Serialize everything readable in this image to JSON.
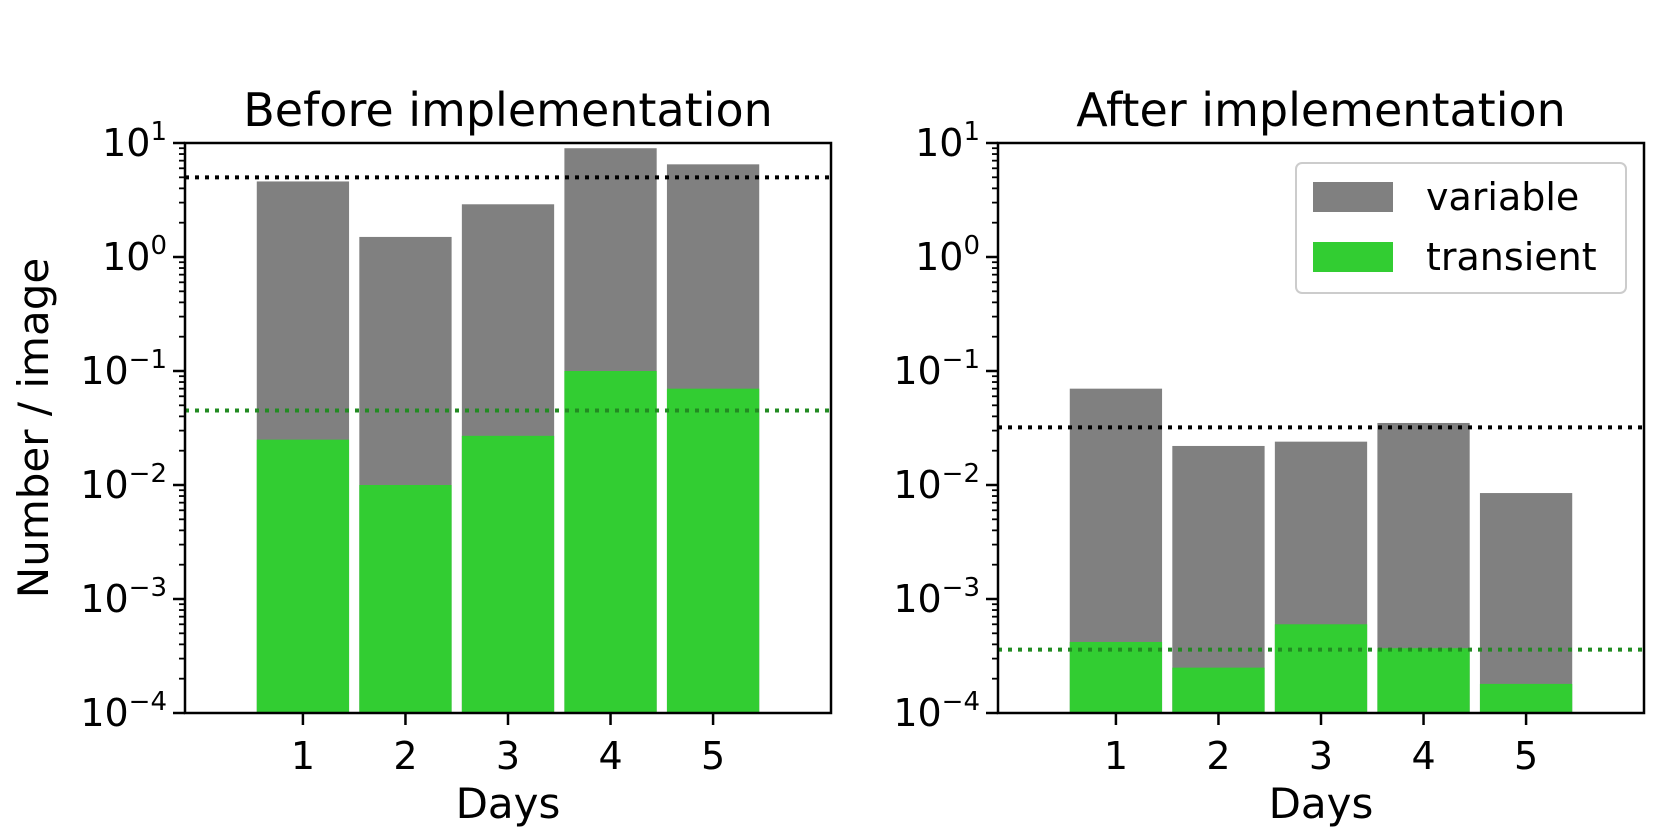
{
  "y_axis_label": "Number / image",
  "legend": [
    {
      "label": "variable",
      "color": "#808080"
    },
    {
      "label": "transient",
      "color": "#32cd32"
    }
  ],
  "chart_data": [
    {
      "type": "bar",
      "title": "Before implementation",
      "xlabel": "Days",
      "ylabel": "Number / image",
      "yscale": "log",
      "ylim": [
        0.0001,
        10
      ],
      "y_tick_labels": [
        "10^-4",
        "10^-3",
        "10^-2",
        "10^-1",
        "10^0",
        "10^1"
      ],
      "categories": [
        "1",
        "2",
        "3",
        "4",
        "5"
      ],
      "stacked_overlay": true,
      "series": [
        {
          "name": "variable",
          "color": "#808080",
          "values": [
            4.6,
            1.5,
            2.9,
            9.0,
            6.5
          ]
        },
        {
          "name": "transient",
          "color": "#32cd32",
          "values": [
            0.025,
            0.01,
            0.027,
            0.1,
            0.07
          ]
        }
      ],
      "reference_lines": [
        {
          "series": "variable",
          "y": 5.0,
          "style": "dotted",
          "color": "#000000"
        },
        {
          "series": "transient",
          "y": 0.045,
          "style": "dotted",
          "color": "#228b22"
        }
      ],
      "legend_position": "none",
      "grid": false
    },
    {
      "type": "bar",
      "title": "After implementation",
      "xlabel": "Days",
      "ylabel": "",
      "yscale": "log",
      "ylim": [
        0.0001,
        10
      ],
      "y_tick_labels": [
        "10^-4",
        "10^-3",
        "10^-2",
        "10^-1",
        "10^0",
        "10^1"
      ],
      "categories": [
        "1",
        "2",
        "3",
        "4",
        "5"
      ],
      "stacked_overlay": true,
      "series": [
        {
          "name": "variable",
          "color": "#808080",
          "values": [
            0.07,
            0.022,
            0.024,
            0.035,
            0.0085
          ]
        },
        {
          "name": "transient",
          "color": "#32cd32",
          "values": [
            0.00042,
            0.00025,
            0.0006,
            0.00037,
            0.00018
          ]
        }
      ],
      "reference_lines": [
        {
          "series": "variable",
          "y": 0.032,
          "style": "dotted",
          "color": "#000000"
        },
        {
          "series": "transient",
          "y": 0.00036,
          "style": "dotted",
          "color": "#228b22"
        }
      ],
      "legend_position": "upper right",
      "grid": false
    }
  ]
}
